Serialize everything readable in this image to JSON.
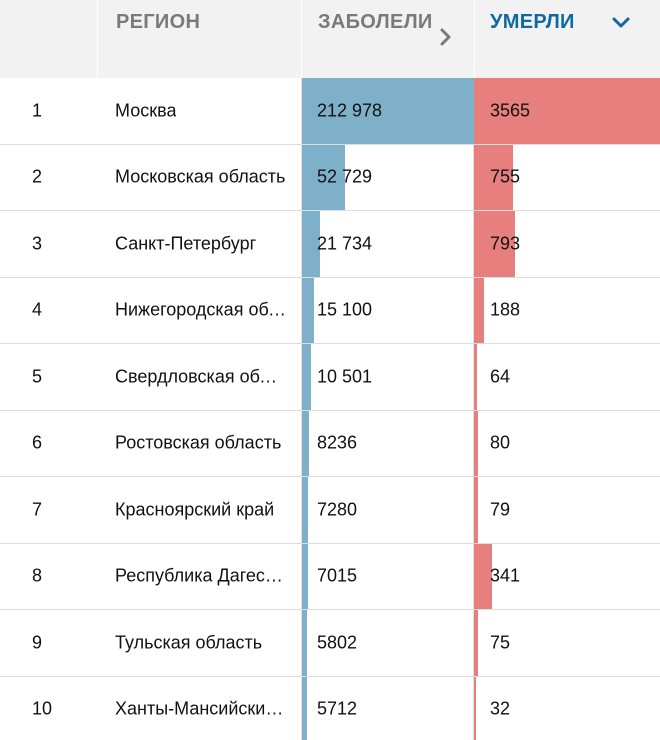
{
  "header": {
    "rank_label": "",
    "region_label": "РЕГИОН",
    "cases_label": "ЗАБОЛЕЛИ",
    "deaths_label": "УМЕРЛИ"
  },
  "icons": {
    "cases_sort": "chevron-right-icon",
    "deaths_sort": "chevron-down-icon"
  },
  "colors": {
    "cases_bar": "#7fb0c9",
    "deaths_bar": "#e87f7f",
    "active_header": "#0e6aa0",
    "inactive_header": "#7a7a7a"
  },
  "chart_data": {
    "type": "table",
    "columns": [
      "РЕГИОН",
      "ЗАБОЛЕЛИ",
      "УМЕРЛИ"
    ],
    "rows": [
      {
        "rank": "1",
        "region": "Москва",
        "cases": 212978,
        "cases_label": "212 978",
        "deaths": 3565,
        "deaths_label": "3565"
      },
      {
        "rank": "2",
        "region": "Московская область",
        "cases": 52729,
        "cases_label": "52 729",
        "deaths": 755,
        "deaths_label": "755"
      },
      {
        "rank": "3",
        "region": "Санкт-Петербург",
        "cases": 21734,
        "cases_label": "21 734",
        "deaths": 793,
        "deaths_label": "793"
      },
      {
        "rank": "4",
        "region": "Нижегородская область",
        "cases": 15100,
        "cases_label": "15 100",
        "deaths": 188,
        "deaths_label": "188"
      },
      {
        "rank": "5",
        "region": "Свердловская область",
        "cases": 10501,
        "cases_label": "10 501",
        "deaths": 64,
        "deaths_label": "64"
      },
      {
        "rank": "6",
        "region": "Ростовская область",
        "cases": 8236,
        "cases_label": "8236",
        "deaths": 80,
        "deaths_label": "80"
      },
      {
        "rank": "7",
        "region": "Красноярский край",
        "cases": 7280,
        "cases_label": "7280",
        "deaths": 79,
        "deaths_label": "79"
      },
      {
        "rank": "8",
        "region": "Республика Дагестан",
        "cases": 7015,
        "cases_label": "7015",
        "deaths": 341,
        "deaths_label": "341"
      },
      {
        "rank": "9",
        "region": "Тульская область",
        "cases": 5802,
        "cases_label": "5802",
        "deaths": 75,
        "deaths_label": "75"
      },
      {
        "rank": "10",
        "region": "Ханты-Мансийский автономный округ",
        "cases": 5712,
        "cases_label": "5712",
        "deaths": 32,
        "deaths_label": "32"
      }
    ]
  }
}
